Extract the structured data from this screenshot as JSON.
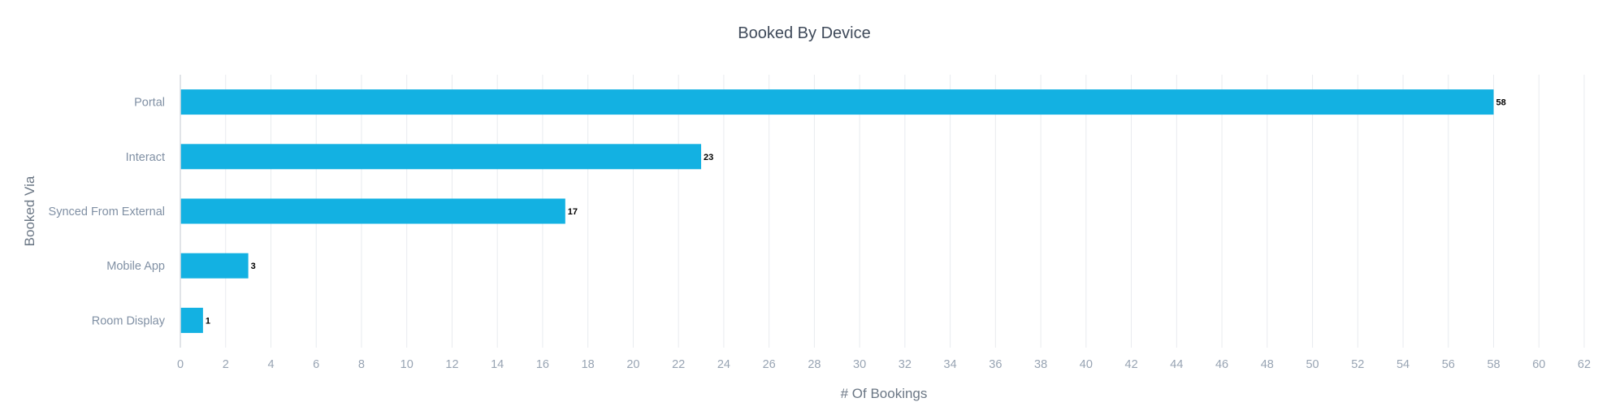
{
  "chart_data": {
    "type": "bar",
    "orientation": "horizontal",
    "title": "Booked By Device",
    "xlabel": "# Of Bookings",
    "ylabel": "Booked Via",
    "categories": [
      "Portal",
      "Interact",
      "Synced From External",
      "Mobile App",
      "Room Display"
    ],
    "values": [
      58,
      23,
      17,
      3,
      1
    ],
    "data_labels": [
      "58",
      "23",
      "17",
      "3",
      "1"
    ],
    "xlim": [
      0,
      62
    ],
    "x_ticks": [
      0,
      2,
      4,
      6,
      8,
      10,
      12,
      14,
      16,
      18,
      20,
      22,
      24,
      26,
      28,
      30,
      32,
      34,
      36,
      38,
      40,
      42,
      44,
      46,
      48,
      50,
      52,
      54,
      56,
      58,
      60,
      62
    ],
    "grid": true,
    "legend": "none",
    "bar_color": "#13b1e2"
  }
}
